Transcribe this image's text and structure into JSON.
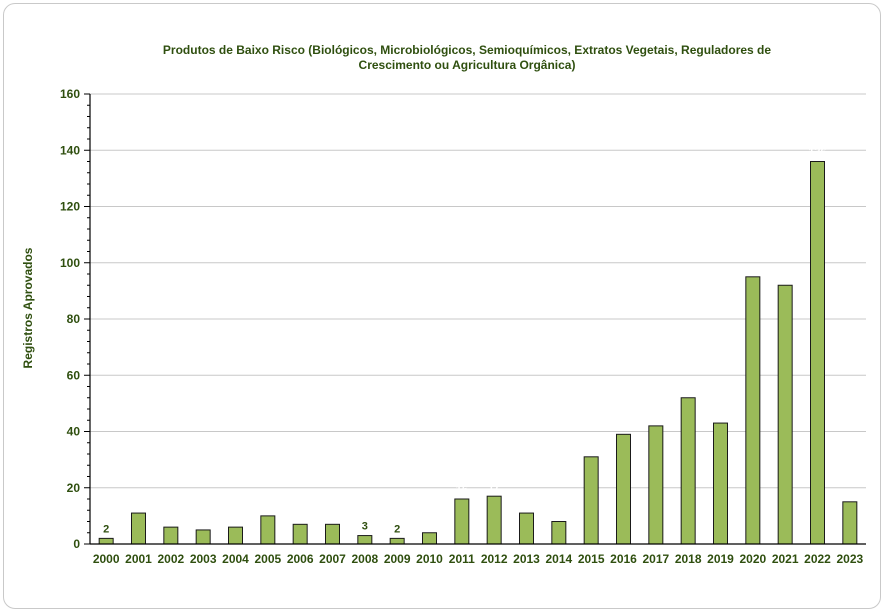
{
  "chart_data": {
    "type": "bar",
    "title_lines": [
      "Produtos de Baixo Risco (Biológicos, Microbiológicos, Semioquímicos, Extratos Vegetais, Reguladores de",
      "Crescimento ou Agricultura Orgânica)"
    ],
    "ylabel": "Registros Aprovados",
    "xlabel": "",
    "ylim": [
      0,
      160
    ],
    "yticks": [
      0,
      20,
      40,
      60,
      80,
      100,
      120,
      140,
      160
    ],
    "grid": true,
    "legend": "none",
    "categories": [
      "2000",
      "2001",
      "2002",
      "2003",
      "2004",
      "2005",
      "2006",
      "2007",
      "2008",
      "2009",
      "2010",
      "2011",
      "2012",
      "2013",
      "2014",
      "2015",
      "2016",
      "2017",
      "2018",
      "2019",
      "2020",
      "2021",
      "2022",
      "2023"
    ],
    "values": [
      2,
      11,
      6,
      5,
      6,
      10,
      7,
      7,
      3,
      2,
      4,
      16,
      17,
      11,
      8,
      31,
      39,
      42,
      52,
      43,
      95,
      92,
      136,
      15
    ],
    "data_labels": [
      {
        "index": 0,
        "text": "2",
        "color": "#2f4f0f"
      },
      {
        "index": 8,
        "text": "3",
        "color": "#2f4f0f"
      },
      {
        "index": 9,
        "text": "2",
        "color": "#2f4f0f"
      },
      {
        "index": 11,
        "text": "16",
        "color": "#ffffff"
      },
      {
        "index": 12,
        "text": "17",
        "color": "#ffffff"
      },
      {
        "index": 20,
        "text": "95",
        "color": "#ffffff"
      },
      {
        "index": 22,
        "text": "136",
        "color": "#ffffff"
      },
      {
        "index": 23,
        "text": "15",
        "color": "#ffffff"
      }
    ],
    "colors": {
      "bar_fill": "#9bbb59",
      "bar_stroke": "#1a1a1a",
      "text": "#2f4f0f",
      "grid": "#c8c8c8",
      "axis": "#000000"
    }
  }
}
